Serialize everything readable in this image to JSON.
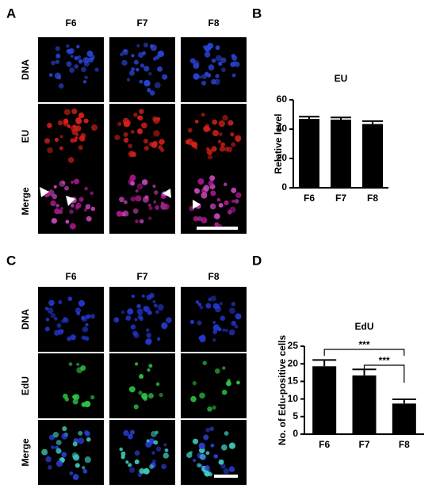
{
  "panel_labels": [
    "A",
    "B",
    "C",
    "D"
  ],
  "figure_a": {
    "columns": [
      "F6",
      "F7",
      "F8"
    ],
    "rows": [
      "DNA",
      "EU",
      "Merge"
    ]
  },
  "figure_c": {
    "columns": [
      "F6",
      "F7",
      "F8"
    ],
    "rows": [
      "DNA",
      "EdU",
      "Merge"
    ]
  },
  "chart_data": [
    {
      "type": "bar",
      "title": "EU",
      "ylabel": "Relative level",
      "categories": [
        "F6",
        "F7",
        "F8"
      ],
      "values": [
        47,
        46.5,
        43.5
      ],
      "errors": [
        1.5,
        1.5,
        2
      ],
      "color": "#000000",
      "ylim": [
        0,
        60
      ],
      "yticks": [
        0,
        20,
        40,
        60
      ]
    },
    {
      "type": "bar",
      "title": "EdU",
      "ylabel": "No. of Edu-positive cells",
      "categories": [
        "F6",
        "F7",
        "F8"
      ],
      "values": [
        19.3,
        16.7,
        8.7
      ],
      "errors": [
        1.8,
        1.7,
        1.2
      ],
      "color": "#000000",
      "ylim": [
        0,
        25
      ],
      "yticks": [
        0,
        5,
        10,
        15,
        20,
        25
      ],
      "annotations": [
        "***",
        "***"
      ]
    }
  ]
}
